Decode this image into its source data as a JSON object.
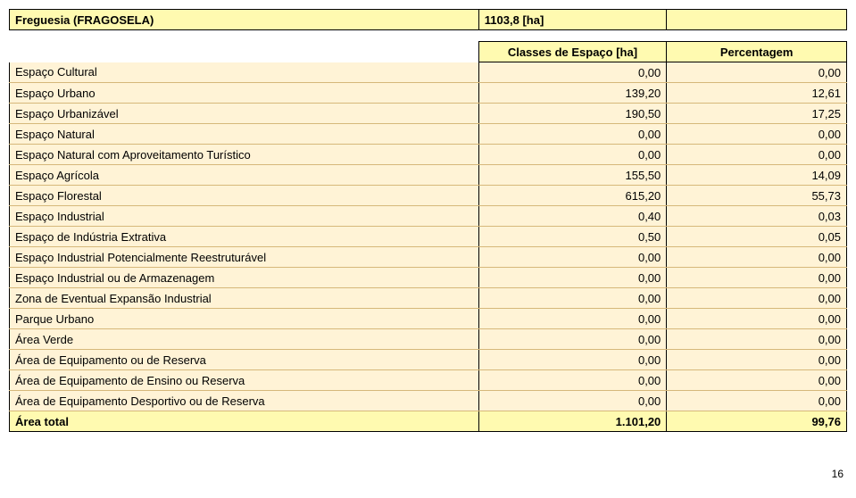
{
  "header": {
    "title_prefix": "Freguesia",
    "title_name": "(FRAGOSELA)",
    "total_area": "1103,8 [ha]"
  },
  "columns": {
    "classes": "Classes de Espaço [ha]",
    "pct": "Percentagem"
  },
  "rows": [
    {
      "label": "Espaço Cultural",
      "v1": "0,00",
      "v2": "0,00"
    },
    {
      "label": "Espaço Urbano",
      "v1": "139,20",
      "v2": "12,61"
    },
    {
      "label": "Espaço Urbanizável",
      "v1": "190,50",
      "v2": "17,25"
    },
    {
      "label": "Espaço Natural",
      "v1": "0,00",
      "v2": "0,00"
    },
    {
      "label": "Espaço Natural com Aproveitamento Turístico",
      "v1": "0,00",
      "v2": "0,00"
    },
    {
      "label": "Espaço Agrícola",
      "v1": "155,50",
      "v2": "14,09"
    },
    {
      "label": "Espaço Florestal",
      "v1": "615,20",
      "v2": "55,73"
    },
    {
      "label": "Espaço Industrial",
      "v1": "0,40",
      "v2": "0,03"
    },
    {
      "label": "Espaço de Indústria Extrativa",
      "v1": "0,50",
      "v2": "0,05"
    },
    {
      "label": "Espaço Industrial Potencialmente Reestruturável",
      "v1": "0,00",
      "v2": "0,00"
    },
    {
      "label": "Espaço Industrial ou de Armazenagem",
      "v1": "0,00",
      "v2": "0,00"
    },
    {
      "label": "Zona de Eventual Expansão Industrial",
      "v1": "0,00",
      "v2": "0,00"
    },
    {
      "label": "Parque Urbano",
      "v1": "0,00",
      "v2": "0,00"
    },
    {
      "label": "Área Verde",
      "v1": "0,00",
      "v2": "0,00"
    },
    {
      "label": "Área de Equipamento ou de Reserva",
      "v1": "0,00",
      "v2": "0,00"
    },
    {
      "label": "Área de Equipamento de Ensino ou Reserva",
      "v1": "0,00",
      "v2": "0,00"
    },
    {
      "label": "Área de Equipamento Desportivo ou de Reserva",
      "v1": "0,00",
      "v2": "0,00"
    }
  ],
  "total": {
    "label": "Área total",
    "v1": "1.101,20",
    "v2": "99,76"
  },
  "page_number": "16",
  "styling": {
    "header_bg": "#fffab0",
    "data_bg": "#fff3d6",
    "border_color": "#000000",
    "row_divider": "#d6b87a",
    "font_family": "Arial",
    "base_fontsize": 13
  }
}
